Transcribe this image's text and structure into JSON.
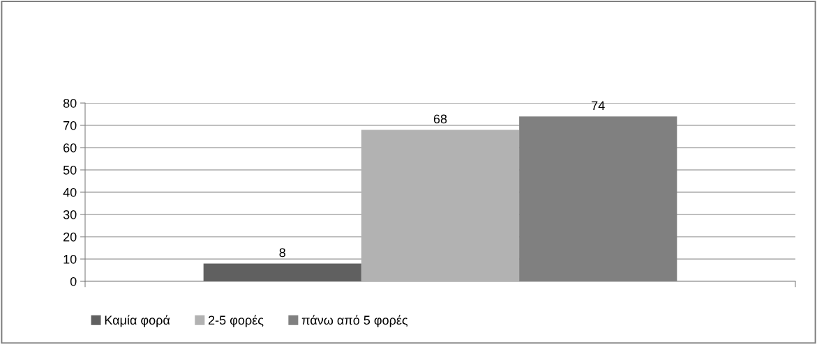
{
  "chart_data": {
    "type": "bar",
    "categories": [
      null
    ],
    "series": [
      {
        "name": "Καμία φορά",
        "color": "#606060",
        "values": [
          8
        ]
      },
      {
        "name": "2-5 φορές",
        "color": "#b2b2b2",
        "values": [
          68
        ]
      },
      {
        "name": "πάνω από 5 φορές",
        "color": "#808080",
        "values": [
          74
        ]
      }
    ],
    "ylim": [
      0,
      80
    ],
    "yticks": [
      0,
      10,
      20,
      30,
      40,
      50,
      60,
      70,
      80
    ],
    "grid": "y",
    "legend": "bottom",
    "data_labels": true
  }
}
